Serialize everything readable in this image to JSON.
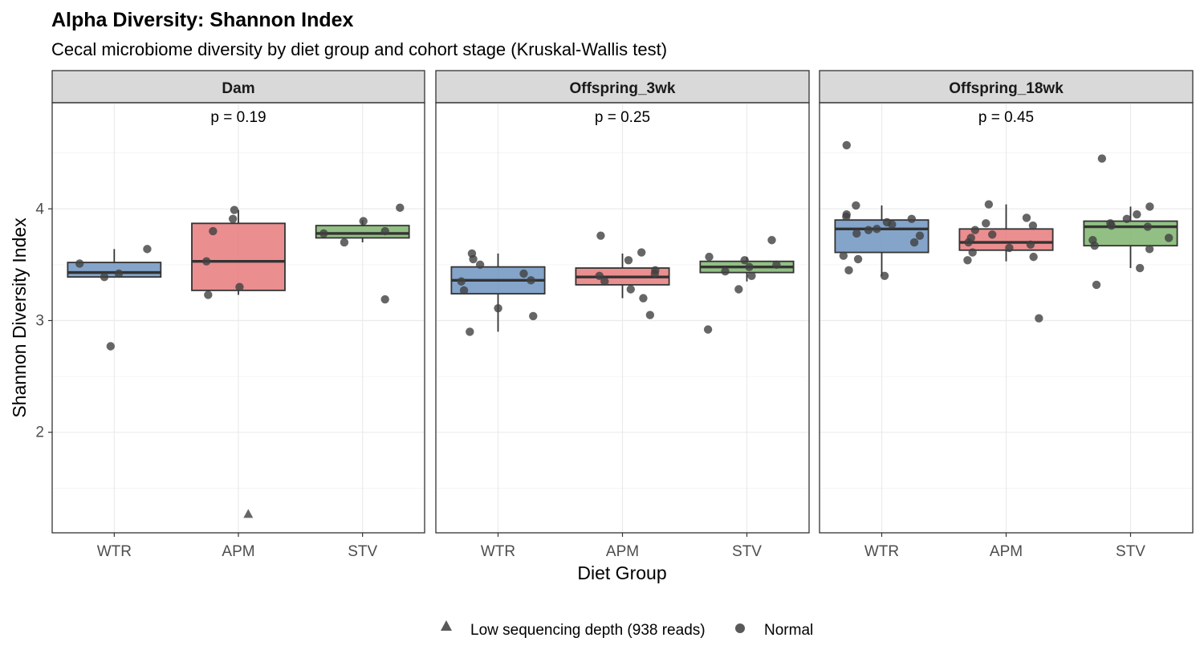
{
  "chart_data": {
    "type": "box",
    "title": "Alpha Diversity: Shannon Index",
    "subtitle": "Cecal microbiome diversity by diet group and cohort stage (Kruskal-Wallis test)",
    "xlabel": "Diet Group",
    "ylabel": "Shannon Diversity Index",
    "ylim": [
      1.1,
      4.95
    ],
    "yticks": [
      2,
      3,
      4
    ],
    "categories": [
      "WTR",
      "APM",
      "STV"
    ],
    "colors": {
      "WTR": "#6e94c1",
      "APM": "#e87a7b",
      "STV": "#7fb56f"
    },
    "grid": true,
    "legend": {
      "position": "bottom",
      "entries": [
        {
          "label": "Low sequencing depth (938 reads)",
          "shape": "triangle",
          "color": "#595959"
        },
        {
          "label": "Normal",
          "shape": "circle",
          "color": "#595959"
        }
      ]
    },
    "panels": [
      {
        "name": "Dam",
        "pvalue": "p = 0.19",
        "boxes": [
          {
            "category": "WTR",
            "q1": 3.39,
            "median": 3.43,
            "q3": 3.52,
            "whisker_low": 3.39,
            "whisker_high": 3.64
          },
          {
            "category": "APM",
            "q1": 3.27,
            "median": 3.53,
            "q3": 3.87,
            "whisker_low": 3.23,
            "whisker_high": 3.99
          },
          {
            "category": "STV",
            "q1": 3.74,
            "median": 3.78,
            "q3": 3.85,
            "whisker_low": 3.7,
            "whisker_high": 3.9
          }
        ],
        "points": [
          {
            "category": "WTR",
            "values": [
              3.64,
              3.51,
              3.42,
              3.39,
              2.77
            ],
            "shapes": [
              "circle",
              "circle",
              "circle",
              "circle",
              "circle"
            ]
          },
          {
            "category": "APM",
            "values": [
              3.99,
              3.91,
              3.8,
              3.53,
              3.3,
              3.23,
              1.27
            ],
            "shapes": [
              "circle",
              "circle",
              "circle",
              "circle",
              "circle",
              "circle",
              "triangle"
            ]
          },
          {
            "category": "STV",
            "values": [
              4.01,
              3.89,
              3.8,
              3.78,
              3.7,
              3.19
            ],
            "shapes": [
              "circle",
              "circle",
              "circle",
              "circle",
              "circle",
              "circle"
            ]
          }
        ]
      },
      {
        "name": "Offspring_3wk",
        "pvalue": "p = 0.25",
        "boxes": [
          {
            "category": "WTR",
            "q1": 3.24,
            "median": 3.36,
            "q3": 3.48,
            "whisker_low": 2.9,
            "whisker_high": 3.6
          },
          {
            "category": "APM",
            "q1": 3.32,
            "median": 3.39,
            "q3": 3.47,
            "whisker_low": 3.2,
            "whisker_high": 3.6
          },
          {
            "category": "STV",
            "q1": 3.43,
            "median": 3.48,
            "q3": 3.53,
            "whisker_low": 3.35,
            "whisker_high": 3.57
          }
        ],
        "points": [
          {
            "category": "WTR",
            "values": [
              3.6,
              3.55,
              3.5,
              3.42,
              3.36,
              3.35,
              3.27,
              3.11,
              3.04,
              2.9
            ],
            "shapes": [
              "circle",
              "circle",
              "circle",
              "circle",
              "circle",
              "circle",
              "circle",
              "circle",
              "circle",
              "circle"
            ]
          },
          {
            "category": "APM",
            "values": [
              3.76,
              3.61,
              3.54,
              3.45,
              3.42,
              3.4,
              3.35,
              3.28,
              3.2,
              3.05
            ],
            "shapes": [
              "circle",
              "circle",
              "circle",
              "circle",
              "circle",
              "circle",
              "circle",
              "circle",
              "circle",
              "circle"
            ]
          },
          {
            "category": "STV",
            "values": [
              3.72,
              3.57,
              3.54,
              3.5,
              3.48,
              3.44,
              3.4,
              3.28,
              2.92
            ],
            "shapes": [
              "circle",
              "circle",
              "circle",
              "circle",
              "circle",
              "circle",
              "circle",
              "circle",
              "circle"
            ]
          }
        ]
      },
      {
        "name": "Offspring_18wk",
        "pvalue": "p = 0.45",
        "boxes": [
          {
            "category": "WTR",
            "q1": 3.61,
            "median": 3.82,
            "q3": 3.9,
            "whisker_low": 3.4,
            "whisker_high": 4.03
          },
          {
            "category": "APM",
            "q1": 3.63,
            "median": 3.7,
            "q3": 3.82,
            "whisker_low": 3.53,
            "whisker_high": 4.04
          },
          {
            "category": "STV",
            "q1": 3.67,
            "median": 3.84,
            "q3": 3.89,
            "whisker_low": 3.47,
            "whisker_high": 4.02
          }
        ],
        "points": [
          {
            "category": "WTR",
            "values": [
              4.57,
              4.03,
              3.95,
              3.93,
              3.91,
              3.88,
              3.86,
              3.82,
              3.81,
              3.78,
              3.76,
              3.7,
              3.58,
              3.55,
              3.45,
              3.4
            ],
            "shapes": [
              "circle",
              "circle",
              "circle",
              "circle",
              "circle",
              "circle",
              "circle",
              "circle",
              "circle",
              "circle",
              "circle",
              "circle",
              "circle",
              "circle",
              "circle",
              "circle"
            ]
          },
          {
            "category": "APM",
            "values": [
              4.04,
              3.92,
              3.87,
              3.85,
              3.81,
              3.77,
              3.74,
              3.7,
              3.68,
              3.65,
              3.61,
              3.57,
              3.54,
              3.02
            ],
            "shapes": [
              "circle",
              "circle",
              "circle",
              "circle",
              "circle",
              "circle",
              "circle",
              "circle",
              "circle",
              "circle",
              "circle",
              "circle",
              "circle",
              "circle"
            ]
          },
          {
            "category": "STV",
            "values": [
              4.45,
              4.02,
              3.95,
              3.91,
              3.87,
              3.85,
              3.84,
              3.74,
              3.72,
              3.67,
              3.64,
              3.47,
              3.32
            ],
            "shapes": [
              "circle",
              "circle",
              "circle",
              "circle",
              "circle",
              "circle",
              "circle",
              "circle",
              "circle",
              "circle",
              "circle",
              "circle",
              "circle"
            ]
          }
        ]
      }
    ]
  }
}
